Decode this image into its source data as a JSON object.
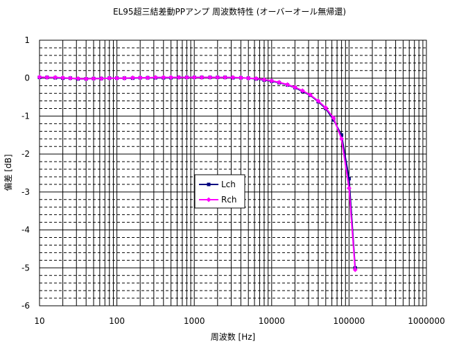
{
  "chart_data": {
    "type": "line",
    "title": "EL95超三結差動PPアンプ 周波数特性 (オーバーオール無帰還)",
    "xlabel": "周波数 [Hz]",
    "ylabel": "偏差 [dB]",
    "x_scale": "log",
    "xlim": [
      10,
      1000000
    ],
    "ylim": [
      -6,
      1
    ],
    "x_tick_labels": [
      "10",
      "100",
      "1000",
      "10000",
      "100000",
      "1000000"
    ],
    "y_tick_labels": [
      "1",
      "0",
      "-1",
      "-2",
      "-3",
      "-4",
      "-5",
      "-6"
    ],
    "grid": true,
    "legend_position": "center-left",
    "series": [
      {
        "name": "Lch",
        "color": "#000080",
        "marker": "square",
        "x": [
          10,
          12.5,
          16,
          20,
          25,
          31.5,
          40,
          50,
          63,
          80,
          100,
          125,
          160,
          200,
          250,
          315,
          400,
          500,
          630,
          800,
          1000,
          1250,
          1600,
          2000,
          2500,
          3150,
          4000,
          5000,
          6300,
          8000,
          10000,
          12500,
          16000,
          20000,
          25000,
          31500,
          40000,
          50000,
          63000,
          80000,
          100000,
          120000
        ],
        "values": [
          0.02,
          0.02,
          0.01,
          0.0,
          0.0,
          -0.02,
          -0.02,
          -0.01,
          -0.01,
          0.0,
          0.0,
          0.0,
          0.0,
          0.01,
          0.01,
          0.01,
          0.01,
          0.01,
          0.02,
          0.02,
          0.02,
          0.02,
          0.02,
          0.02,
          0.02,
          0.01,
          0.01,
          0.0,
          -0.02,
          -0.05,
          -0.08,
          -0.12,
          -0.18,
          -0.25,
          -0.35,
          -0.45,
          -0.62,
          -0.8,
          -1.1,
          -1.5,
          -2.65,
          -5.0
        ]
      },
      {
        "name": "Rch",
        "color": "#ff00ff",
        "marker": "diamond",
        "x": [
          10,
          12.5,
          16,
          20,
          25,
          31.5,
          40,
          50,
          63,
          80,
          100,
          125,
          160,
          200,
          250,
          315,
          400,
          500,
          630,
          800,
          1000,
          1250,
          1600,
          2000,
          2500,
          3150,
          4000,
          5000,
          6300,
          8000,
          10000,
          12500,
          16000,
          20000,
          25000,
          31500,
          40000,
          50000,
          63000,
          80000,
          100000,
          120000
        ],
        "values": [
          0.03,
          0.02,
          0.02,
          0.01,
          0.0,
          -0.01,
          -0.02,
          -0.01,
          -0.01,
          0.0,
          0.0,
          0.0,
          0.01,
          0.01,
          0.01,
          0.02,
          0.02,
          0.02,
          0.02,
          0.02,
          0.02,
          0.02,
          0.02,
          0.02,
          0.02,
          0.02,
          0.01,
          0.0,
          -0.01,
          -0.04,
          -0.07,
          -0.11,
          -0.17,
          -0.24,
          -0.33,
          -0.44,
          -0.6,
          -0.78,
          -1.05,
          -1.6,
          -2.9,
          -5.05
        ]
      }
    ]
  }
}
